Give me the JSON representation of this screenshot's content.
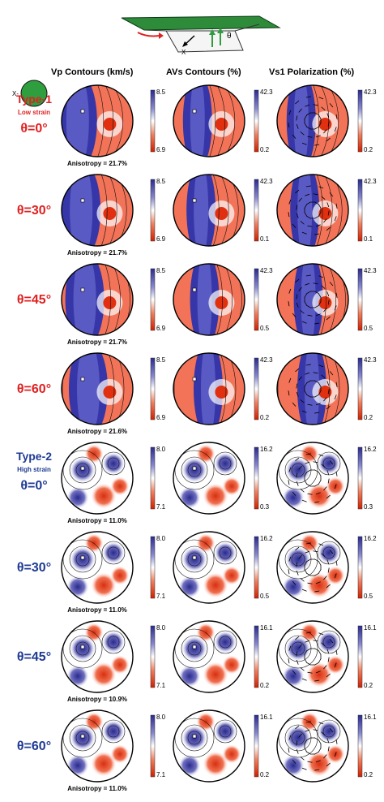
{
  "headers": {
    "vp": "Vp Contours (km/s)",
    "avs": "AVs Contours (%)",
    "vs1": "Vs1 Polarization (%)"
  },
  "schematic": {
    "x_label": "X",
    "theta_label": "θ",
    "x_axis_label": "X-"
  },
  "colors": {
    "type1": "#e02020",
    "type2": "#1f3a93",
    "blue": "#3a3ab0",
    "red": "#e03010",
    "green": "#2e9e3e",
    "slab": "#2e8b3a"
  },
  "rows": [
    {
      "type_label": "Type-1",
      "strain_label": "Low strain",
      "angle_label": "θ=0°",
      "group": 1,
      "vp_max": "8.5",
      "vp_min": "6.9",
      "anisotropy": "Anisotropy = 21.7%",
      "avs_max": "42.3",
      "avs_min": "0.2",
      "vs1_max": "42.3",
      "vs1_min": "0.2"
    },
    {
      "type_label": "",
      "strain_label": "",
      "angle_label": "θ=30°",
      "group": 1,
      "vp_max": "8.5",
      "vp_min": "6.9",
      "anisotropy": "Anisotropy = 21.7%",
      "avs_max": "42.3",
      "avs_min": "0.1",
      "vs1_max": "42.3",
      "vs1_min": "0.1"
    },
    {
      "type_label": "",
      "strain_label": "",
      "angle_label": "θ=45°",
      "group": 1,
      "vp_max": "8.5",
      "vp_min": "6.9",
      "anisotropy": "Anisotropy = 21.7%",
      "avs_max": "42.3",
      "avs_min": "0.5",
      "vs1_max": "42.3",
      "vs1_min": "0.5"
    },
    {
      "type_label": "",
      "strain_label": "",
      "angle_label": "θ=60°",
      "group": 1,
      "vp_max": "8.5",
      "vp_min": "6.9",
      "anisotropy": "Anisotropy = 21.6%",
      "avs_max": "42.3",
      "avs_min": "0.2",
      "vs1_max": "42.3",
      "vs1_min": "0.2"
    },
    {
      "type_label": "Type-2",
      "strain_label": "High strain",
      "angle_label": "θ=0°",
      "group": 2,
      "vp_max": "8.0",
      "vp_min": "7.1",
      "anisotropy": "Anisotropy = 11.0%",
      "avs_max": "16.2",
      "avs_min": "0.3",
      "vs1_max": "16.2",
      "vs1_min": "0.3"
    },
    {
      "type_label": "",
      "strain_label": "",
      "angle_label": "θ=30°",
      "group": 2,
      "vp_max": "8.0",
      "vp_min": "7.1",
      "anisotropy": "Anisotropy = 11.0%",
      "avs_max": "16.2",
      "avs_min": "0.5",
      "vs1_max": "16.2",
      "vs1_min": "0.5"
    },
    {
      "type_label": "",
      "strain_label": "",
      "angle_label": "θ=45°",
      "group": 2,
      "vp_max": "8.0",
      "vp_min": "7.1",
      "anisotropy": "Anisotropy = 10.9%",
      "avs_max": "16.1",
      "avs_min": "0.2",
      "vs1_max": "16.1",
      "vs1_min": "0.2"
    },
    {
      "type_label": "",
      "strain_label": "",
      "angle_label": "θ=60°",
      "group": 2,
      "vp_max": "8.0",
      "vp_min": "7.1",
      "anisotropy": "Anisotropy = 11.0%",
      "avs_max": "16.1",
      "avs_min": "0.2",
      "vs1_max": "16.1",
      "vs1_min": "0.2"
    }
  ]
}
